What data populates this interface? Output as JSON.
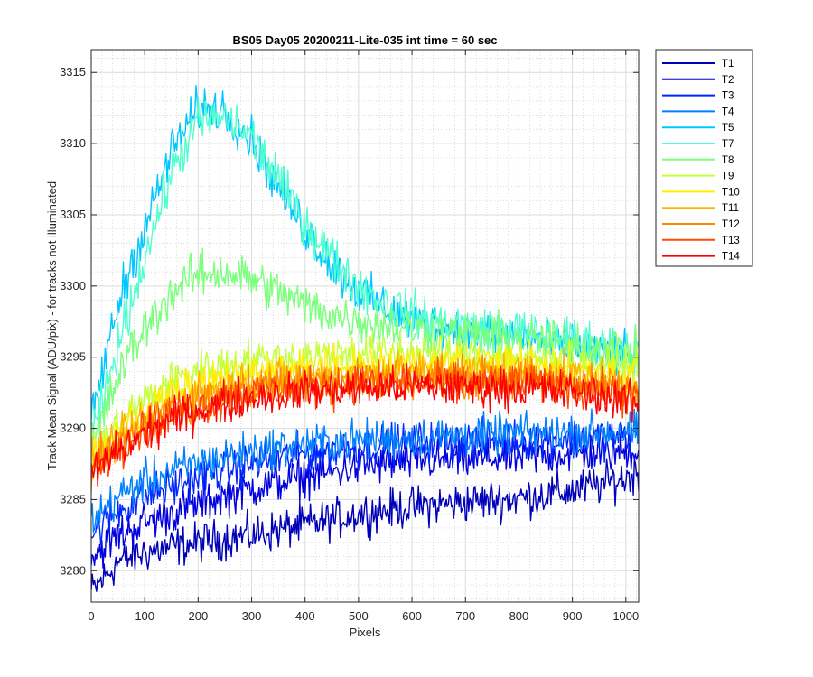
{
  "chart_data": {
    "type": "line",
    "title": "BS05 Day05 20200211-Lite-035 int time = 60 sec",
    "xlabel": "Pixels",
    "ylabel": "Track Mean Signal (ADU/pix) - for tracks not illuminated",
    "xlim": [
      0,
      1024
    ],
    "ylim": [
      3277.8,
      3316.6
    ],
    "xticks": [
      0,
      100,
      200,
      300,
      400,
      500,
      600,
      700,
      800,
      900,
      1000
    ],
    "yticks": [
      3280,
      3285,
      3290,
      3295,
      3300,
      3305,
      3310,
      3315
    ],
    "grid": "major and minor",
    "legend_position": "outside-right",
    "series": [
      {
        "name": "T1",
        "color": "#0000b8",
        "points": [
          [
            0,
            3278.5
          ],
          [
            50,
            3280.6
          ],
          [
            100,
            3281.3
          ],
          [
            200,
            3282
          ],
          [
            300,
            3282.5
          ],
          [
            400,
            3283.2
          ],
          [
            500,
            3284
          ],
          [
            600,
            3284.5
          ],
          [
            700,
            3284.8
          ],
          [
            800,
            3285.1
          ],
          [
            900,
            3285.6
          ],
          [
            1000,
            3286.5
          ],
          [
            1024,
            3287
          ]
        ]
      },
      {
        "name": "T2",
        "color": "#0000e0",
        "points": [
          [
            0,
            3281
          ],
          [
            50,
            3282.5
          ],
          [
            100,
            3283.4
          ],
          [
            200,
            3284.7
          ],
          [
            300,
            3285.8
          ],
          [
            400,
            3286.6
          ],
          [
            500,
            3287.3
          ],
          [
            600,
            3287.7
          ],
          [
            700,
            3287.8
          ],
          [
            800,
            3288
          ],
          [
            900,
            3288.2
          ],
          [
            1000,
            3288.4
          ],
          [
            1024,
            3288.6
          ]
        ]
      },
      {
        "name": "T3",
        "color": "#0026ff",
        "points": [
          [
            0,
            3282.5
          ],
          [
            50,
            3284.2
          ],
          [
            100,
            3285.2
          ],
          [
            200,
            3286.6
          ],
          [
            300,
            3287.5
          ],
          [
            400,
            3288.2
          ],
          [
            500,
            3288.7
          ],
          [
            600,
            3289
          ],
          [
            700,
            3289.1
          ],
          [
            800,
            3289.2
          ],
          [
            900,
            3289.3
          ],
          [
            1000,
            3289.4
          ],
          [
            1024,
            3289.5
          ]
        ]
      },
      {
        "name": "T4",
        "color": "#0080ff",
        "points": [
          [
            0,
            3283.5
          ],
          [
            50,
            3285.2
          ],
          [
            100,
            3286.3
          ],
          [
            200,
            3287.6
          ],
          [
            300,
            3288.4
          ],
          [
            400,
            3288.9
          ],
          [
            500,
            3289.2
          ],
          [
            600,
            3289.4
          ],
          [
            700,
            3289.5
          ],
          [
            800,
            3289.6
          ],
          [
            900,
            3289.7
          ],
          [
            1000,
            3289.8
          ],
          [
            1024,
            3289.8
          ]
        ]
      },
      {
        "name": "T5",
        "color": "#00c8ff",
        "points": [
          [
            0,
            3290.5
          ],
          [
            30,
            3295.5
          ],
          [
            60,
            3300
          ],
          [
            100,
            3304
          ],
          [
            150,
            3309.5
          ],
          [
            200,
            3312.5
          ],
          [
            250,
            3312.4
          ],
          [
            300,
            3310.3
          ],
          [
            350,
            3307
          ],
          [
            400,
            3304
          ],
          [
            450,
            3301.5
          ],
          [
            500,
            3299.6
          ],
          [
            550,
            3298.5
          ],
          [
            600,
            3297.5
          ],
          [
            700,
            3296.8
          ],
          [
            800,
            3296.5
          ],
          [
            900,
            3295.8
          ],
          [
            1000,
            3295
          ],
          [
            1024,
            3294.7
          ]
        ]
      },
      {
        "name": "T7",
        "color": "#50ffd0",
        "points": [
          [
            0,
            3289
          ],
          [
            30,
            3293
          ],
          [
            60,
            3297
          ],
          [
            100,
            3302
          ],
          [
            150,
            3308
          ],
          [
            200,
            3311.5
          ],
          [
            250,
            3311.8
          ],
          [
            300,
            3310.5
          ],
          [
            350,
            3307.5
          ],
          [
            400,
            3304.5
          ],
          [
            450,
            3302
          ],
          [
            500,
            3300
          ],
          [
            550,
            3298.8
          ],
          [
            600,
            3298
          ],
          [
            700,
            3297.2
          ],
          [
            800,
            3296.8
          ],
          [
            900,
            3296.2
          ],
          [
            1000,
            3295.6
          ],
          [
            1024,
            3295.3
          ]
        ]
      },
      {
        "name": "T8",
        "color": "#7cff7c",
        "points": [
          [
            0,
            3288.5
          ],
          [
            30,
            3291.5
          ],
          [
            60,
            3294.5
          ],
          [
            100,
            3297
          ],
          [
            150,
            3299.5
          ],
          [
            200,
            3300.8
          ],
          [
            250,
            3301
          ],
          [
            300,
            3300.5
          ],
          [
            350,
            3299.6
          ],
          [
            400,
            3298.6
          ],
          [
            450,
            3298
          ],
          [
            500,
            3297.6
          ],
          [
            550,
            3297.3
          ],
          [
            600,
            3297
          ],
          [
            700,
            3296.6
          ],
          [
            800,
            3296.3
          ],
          [
            900,
            3296
          ],
          [
            1000,
            3295.5
          ],
          [
            1024,
            3295.2
          ]
        ]
      },
      {
        "name": "T9",
        "color": "#c4ff38",
        "points": [
          [
            0,
            3288.2
          ],
          [
            50,
            3290.3
          ],
          [
            100,
            3292
          ],
          [
            150,
            3293.3
          ],
          [
            200,
            3294.1
          ],
          [
            300,
            3294.8
          ],
          [
            400,
            3295.1
          ],
          [
            500,
            3295.3
          ],
          [
            600,
            3295.3
          ],
          [
            700,
            3295.2
          ],
          [
            800,
            3295
          ],
          [
            900,
            3294.8
          ],
          [
            1000,
            3294.3
          ],
          [
            1024,
            3294
          ]
        ]
      },
      {
        "name": "T10",
        "color": "#ffee00",
        "points": [
          [
            0,
            3287.8
          ],
          [
            50,
            3289.6
          ],
          [
            100,
            3291.1
          ],
          [
            150,
            3292.3
          ],
          [
            200,
            3293
          ],
          [
            300,
            3293.8
          ],
          [
            400,
            3294.2
          ],
          [
            500,
            3294.4
          ],
          [
            600,
            3294.5
          ],
          [
            700,
            3294.5
          ],
          [
            800,
            3294.4
          ],
          [
            900,
            3294.2
          ],
          [
            1000,
            3293.6
          ],
          [
            1024,
            3293.2
          ]
        ]
      },
      {
        "name": "T11",
        "color": "#ffb300",
        "points": [
          [
            0,
            3287.5
          ],
          [
            50,
            3289.2
          ],
          [
            100,
            3290.6
          ],
          [
            150,
            3291.7
          ],
          [
            200,
            3292.5
          ],
          [
            300,
            3293.3
          ],
          [
            400,
            3293.7
          ],
          [
            500,
            3293.9
          ],
          [
            600,
            3294
          ],
          [
            700,
            3294
          ],
          [
            800,
            3293.9
          ],
          [
            900,
            3293.7
          ],
          [
            1000,
            3293.1
          ],
          [
            1024,
            3292.8
          ]
        ]
      },
      {
        "name": "T12",
        "color": "#ff8a00",
        "points": [
          [
            0,
            3287.2
          ],
          [
            50,
            3288.9
          ],
          [
            100,
            3290.2
          ],
          [
            150,
            3291.2
          ],
          [
            200,
            3292
          ],
          [
            300,
            3292.9
          ],
          [
            400,
            3293.3
          ],
          [
            500,
            3293.5
          ],
          [
            600,
            3293.6
          ],
          [
            700,
            3293.6
          ],
          [
            800,
            3293.5
          ],
          [
            900,
            3293.3
          ],
          [
            1000,
            3292.7
          ],
          [
            1024,
            3292.4
          ]
        ]
      },
      {
        "name": "T13",
        "color": "#ff4a00",
        "points": [
          [
            0,
            3287
          ],
          [
            50,
            3288.7
          ],
          [
            100,
            3290
          ],
          [
            150,
            3290.9
          ],
          [
            200,
            3291.6
          ],
          [
            300,
            3292.5
          ],
          [
            400,
            3292.9
          ],
          [
            500,
            3293.1
          ],
          [
            600,
            3293.2
          ],
          [
            700,
            3293.2
          ],
          [
            800,
            3293.2
          ],
          [
            900,
            3293
          ],
          [
            1000,
            3292.4
          ],
          [
            1024,
            3292
          ]
        ]
      },
      {
        "name": "T14",
        "color": "#ff0000",
        "points": [
          [
            0,
            3286.8
          ],
          [
            50,
            3288.4
          ],
          [
            100,
            3289.7
          ],
          [
            150,
            3290.6
          ],
          [
            200,
            3291.3
          ],
          [
            300,
            3292.2
          ],
          [
            400,
            3292.6
          ],
          [
            500,
            3292.8
          ],
          [
            600,
            3292.9
          ],
          [
            700,
            3292.9
          ],
          [
            800,
            3292.8
          ],
          [
            900,
            3292.6
          ],
          [
            1000,
            3292
          ],
          [
            1024,
            3291.6
          ]
        ]
      }
    ]
  }
}
